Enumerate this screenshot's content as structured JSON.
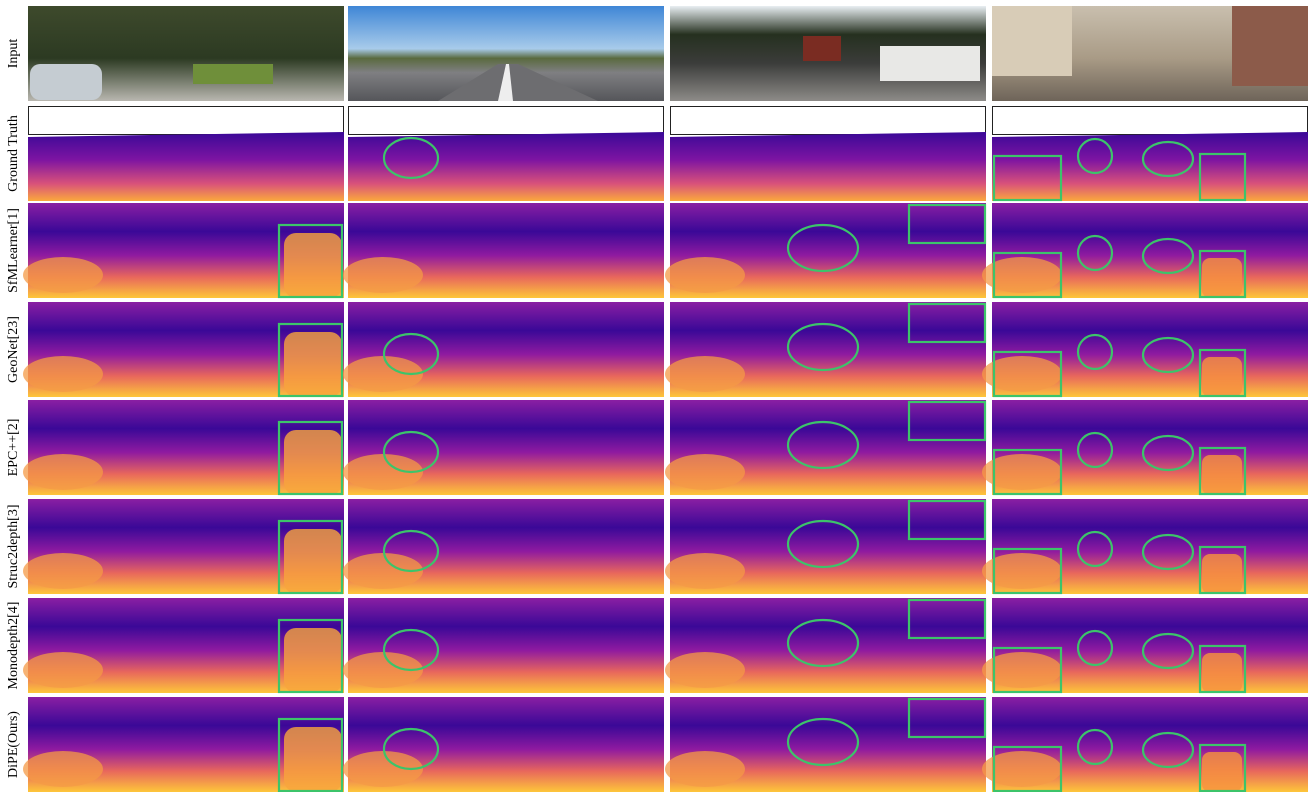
{
  "figure": {
    "row_labels": [
      "Input",
      "Ground Truth",
      "SfMLearner[1]",
      "GeoNet[23]",
      "EPC++[2]",
      "Struc2depth[3]",
      "Monodepth2[4]",
      "DiPE(Ours)"
    ]
  }
}
